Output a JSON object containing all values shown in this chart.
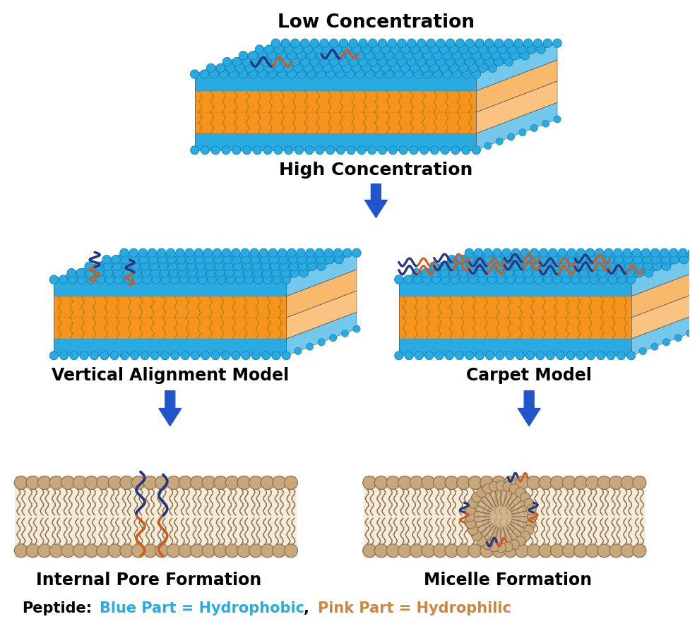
{
  "bg_color": "#ffffff",
  "cyan": "#29ABE2",
  "cyan_dark": "#1888BE",
  "gold": "#F7941D",
  "gold_dark": "#C8780F",
  "tan_head": "#C8A87A",
  "tan_tail": "#D4B896",
  "tan_dark": "#8B7355",
  "blue_peptide": "#1E3A8A",
  "pink_peptide": "#CD5C20",
  "arrow_color": "#2255CC",
  "label_low": "Low Concentration",
  "label_high": "High Concentration",
  "label_vertical": "Vertical Alignment Model",
  "label_carpet": "Carpet Model",
  "label_pore": "Internal Pore Formation",
  "label_micelle": "Micelle Formation",
  "label_fontsize": 17,
  "legend_fontsize": 15
}
